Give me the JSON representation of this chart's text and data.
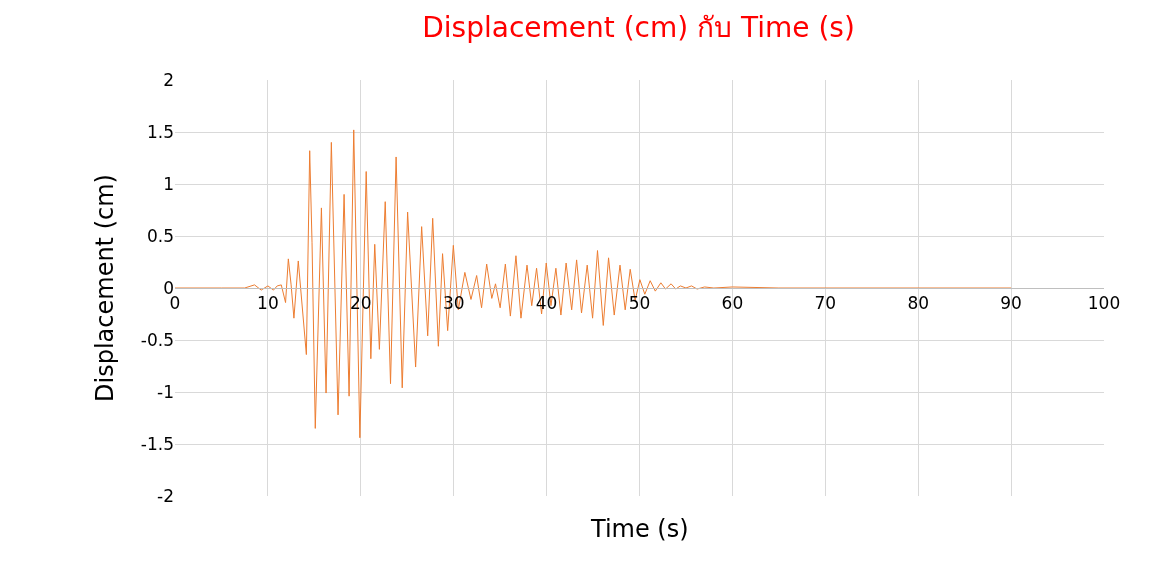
{
  "chart_data": {
    "type": "line",
    "title": "Displacement (cm) กับ Time (s)",
    "xlabel": "Time (s)",
    "ylabel": "Displacement (cm)",
    "x": [
      0,
      5,
      7.5,
      8.56,
      9.28,
      10,
      10.6,
      11.0,
      11.44,
      11.9,
      12.2,
      12.5,
      12.8,
      13.27,
      14.14,
      14.5,
      14.75,
      15.1,
      15.76,
      16.26,
      16.83,
      17.55,
      18.2,
      18.74,
      19.24,
      19.9,
      20.58,
      21.08,
      21.5,
      22.0,
      22.63,
      23.2,
      23.8,
      24.46,
      25.04,
      25.9,
      26.55,
      27.2,
      27.74,
      28.35,
      28.8,
      29.35,
      29.96,
      30.5,
      31.2,
      31.86,
      32.47,
      33.0,
      33.55,
      34.1,
      34.5,
      35.0,
      35.56,
      36.1,
      36.7,
      37.24,
      37.89,
      38.4,
      38.92,
      39.46,
      39.96,
      40.47,
      41.0,
      41.54,
      42.1,
      42.7,
      43.23,
      43.76,
      44.37,
      44.95,
      45.48,
      46.1,
      46.67,
      47.28,
      47.9,
      48.46,
      49.0,
      49.53,
      50.04,
      50.57,
      51.15,
      51.7,
      52.3,
      52.8,
      53.4,
      53.9,
      54.4,
      55.0,
      55.6,
      56.2,
      57.0,
      58.0,
      60.0,
      65.0,
      90.0
    ],
    "series": [
      {
        "color": "#ed7d31",
        "values": [
          0,
          0,
          0,
          0.03,
          -0.02,
          0.02,
          -0.02,
          0.02,
          0.03,
          -0.14,
          0.28,
          0.03,
          -0.29,
          0.26,
          -0.64,
          1.32,
          0.44,
          -1.35,
          0.77,
          -1.01,
          1.4,
          -1.22,
          0.9,
          -1.04,
          1.52,
          -1.44,
          1.12,
          -0.68,
          0.42,
          -0.59,
          0.83,
          -0.92,
          1.26,
          -0.96,
          0.73,
          -0.76,
          0.59,
          -0.46,
          0.67,
          -0.56,
          0.33,
          -0.41,
          0.41,
          -0.21,
          0.15,
          -0.11,
          0.12,
          -0.19,
          0.23,
          -0.1,
          0.04,
          -0.19,
          0.23,
          -0.27,
          0.31,
          -0.29,
          0.22,
          -0.17,
          0.19,
          -0.25,
          0.24,
          -0.17,
          0.19,
          -0.26,
          0.24,
          -0.21,
          0.27,
          -0.24,
          0.22,
          -0.29,
          0.36,
          -0.36,
          0.29,
          -0.26,
          0.22,
          -0.21,
          0.18,
          -0.12,
          0.08,
          -0.06,
          0.07,
          -0.03,
          0.05,
          -0.01,
          0.04,
          -0.01,
          0.02,
          0,
          0.02,
          -0.01,
          0.01,
          0,
          0.01,
          0,
          0
        ]
      }
    ],
    "xlim": [
      0,
      100
    ],
    "xticks": [
      0,
      10,
      20,
      30,
      40,
      50,
      60,
      70,
      80,
      90,
      100
    ],
    "ylim": [
      -2,
      2
    ],
    "yticks": [
      {
        "value": -2,
        "label": "-2"
      },
      {
        "value": -1.5,
        "label": "-1.5"
      },
      {
        "value": -1,
        "label": "-1"
      },
      {
        "value": -0.5,
        "label": "-0.5"
      },
      0,
      0.5,
      1,
      1.5,
      2
    ],
    "grid": true,
    "legend": false,
    "marker": "none",
    "line_style": "solid"
  }
}
